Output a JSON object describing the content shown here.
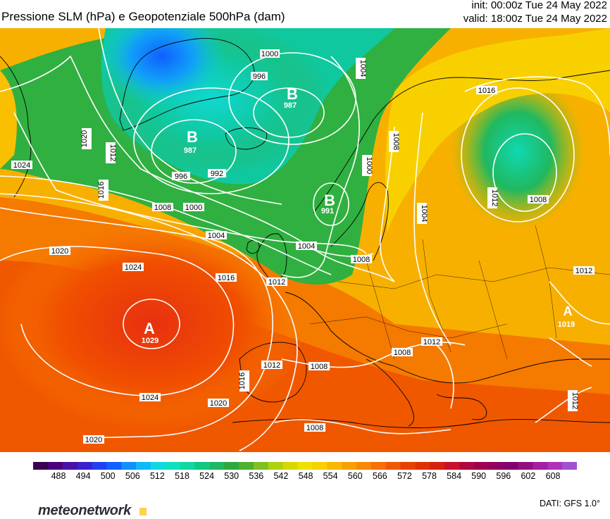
{
  "header": {
    "title": "Pressione SLM (hPa) e Geopotenziale 500hPa (dam)",
    "init": "init: 00:00z Tue 24 May 2022",
    "valid": "valid: 18:00z Tue 24 May 2022"
  },
  "map": {
    "isobar_labels": [
      "1000",
      "996",
      "1004",
      "1016",
      "987",
      "1020",
      "1024",
      "1012",
      "1016",
      "987",
      "996",
      "992",
      "1008",
      "1000",
      "1008",
      "1008",
      "1000",
      "1016",
      "1012",
      "1008",
      "991",
      "1004",
      "1020",
      "1024",
      "1004",
      "1016",
      "1012",
      "1004",
      "1008",
      "1012",
      "1008",
      "1012",
      "1008",
      "1012",
      "1016",
      "1020",
      "1024",
      "1020",
      "1008",
      "1012"
    ],
    "centers": [
      {
        "letter": "B",
        "value": "987"
      },
      {
        "letter": "B",
        "value": "987"
      },
      {
        "letter": "B",
        "value": "991"
      },
      {
        "letter": "A",
        "value": "1029"
      },
      {
        "letter": "A",
        "value": "1019"
      }
    ]
  },
  "colorbar": {
    "ticks": [
      "488",
      "494",
      "500",
      "506",
      "512",
      "518",
      "524",
      "530",
      "536",
      "542",
      "548",
      "554",
      "560",
      "566",
      "572",
      "578",
      "584",
      "590",
      "596",
      "602",
      "608"
    ],
    "colors": [
      "#3a0050",
      "#4a0078",
      "#4a10a8",
      "#3a20d0",
      "#2040f0",
      "#1060ff",
      "#1090ff",
      "#10b8f8",
      "#10d8e0",
      "#10e0c0",
      "#10d8a0",
      "#10c880",
      "#20b860",
      "#30a840",
      "#50b030",
      "#80c020",
      "#b0d010",
      "#d8d800",
      "#f0e000",
      "#f8d000",
      "#f8b800",
      "#f8a000",
      "#f88800",
      "#f87000",
      "#f05800",
      "#e84000",
      "#e03000",
      "#d82010",
      "#c81030",
      "#b00840",
      "#a00050",
      "#900060",
      "#800070",
      "#901080",
      "#a020a0",
      "#b030b8",
      "#a050d0"
    ]
  },
  "footer": {
    "brand": "meteonetwork",
    "credit": "DATI:  GFS  1.0°"
  }
}
